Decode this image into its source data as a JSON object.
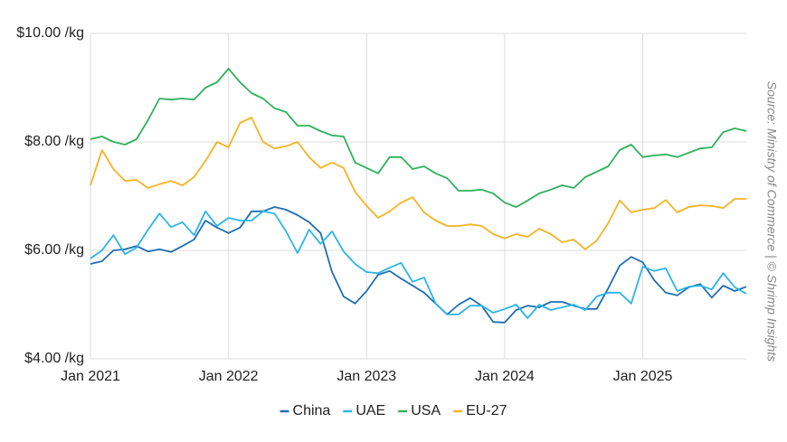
{
  "chart_data": {
    "type": "line",
    "source": "Source: Ministry of Commerce | © Shrimp Insights",
    "x": [
      "2021-01",
      "2021-02",
      "2021-03",
      "2021-04",
      "2021-05",
      "2021-06",
      "2021-07",
      "2021-08",
      "2021-09",
      "2021-10",
      "2021-11",
      "2021-12",
      "2022-01",
      "2022-02",
      "2022-03",
      "2022-04",
      "2022-05",
      "2022-06",
      "2022-07",
      "2022-08",
      "2022-09",
      "2022-10",
      "2022-11",
      "2022-12",
      "2023-01",
      "2023-02",
      "2023-03",
      "2023-04",
      "2023-05",
      "2023-06",
      "2023-07",
      "2023-08",
      "2023-09",
      "2023-10",
      "2023-11",
      "2023-12",
      "2024-01",
      "2024-02",
      "2024-03",
      "2024-04",
      "2024-05",
      "2024-06",
      "2024-07",
      "2024-08",
      "2024-09",
      "2024-10",
      "2024-11",
      "2024-12",
      "2025-01",
      "2025-02",
      "2025-03",
      "2025-04",
      "2025-05",
      "2025-06",
      "2025-07",
      "2025-08",
      "2025-09",
      "2025-10"
    ],
    "xlim": [
      "2021-01",
      "2025-10"
    ],
    "xticks": [
      {
        "value": "2021-01",
        "label": "Jan 2021"
      },
      {
        "value": "2022-01",
        "label": "Jan 2022"
      },
      {
        "value": "2023-01",
        "label": "Jan 2023"
      },
      {
        "value": "2024-01",
        "label": "Jan 2024"
      },
      {
        "value": "2025-01",
        "label": "Jan 2025"
      }
    ],
    "ylim": [
      4,
      10
    ],
    "yticks": [
      {
        "value": 4,
        "label": "$4.00 /kg"
      },
      {
        "value": 6,
        "label": "$6.00 /kg"
      },
      {
        "value": 8,
        "label": "$8.00 /kg"
      },
      {
        "value": 10,
        "label": "$10.00 /kg"
      }
    ],
    "grid": true,
    "legend": "bottom",
    "series": [
      {
        "name": "China",
        "color": "#1f6fb2",
        "values": [
          5.75,
          5.8,
          6.0,
          6.02,
          6.08,
          5.98,
          6.02,
          5.97,
          6.08,
          6.2,
          6.55,
          6.42,
          6.32,
          6.42,
          6.72,
          6.72,
          6.8,
          6.75,
          6.65,
          6.52,
          6.32,
          5.6,
          5.15,
          5.02,
          5.25,
          5.55,
          5.62,
          5.48,
          5.35,
          5.22,
          5.02,
          4.82,
          5.0,
          5.12,
          4.98,
          4.68,
          4.67,
          4.9,
          4.98,
          4.95,
          5.05,
          5.05,
          4.98,
          4.92,
          4.92,
          5.3,
          5.72,
          5.88,
          5.78,
          5.45,
          5.22,
          5.17,
          5.32,
          5.38,
          5.13,
          5.35,
          5.25,
          5.33
        ]
      },
      {
        "name": "UAE",
        "color": "#2bb5e8",
        "values": [
          5.85,
          6.0,
          6.28,
          5.93,
          6.05,
          6.38,
          6.68,
          6.43,
          6.52,
          6.28,
          6.72,
          6.45,
          6.6,
          6.55,
          6.55,
          6.72,
          6.68,
          6.35,
          5.95,
          6.38,
          6.12,
          6.35,
          5.98,
          5.75,
          5.6,
          5.58,
          5.68,
          5.77,
          5.42,
          5.5,
          5.02,
          4.82,
          4.82,
          4.98,
          4.98,
          4.85,
          4.92,
          5.0,
          4.75,
          5.0,
          4.9,
          4.95,
          5.0,
          4.9,
          5.15,
          5.22,
          5.22,
          5.02,
          5.7,
          5.62,
          5.67,
          5.25,
          5.33,
          5.35,
          5.28,
          5.58,
          5.32,
          5.2
        ]
      },
      {
        "name": "USA",
        "color": "#2eb25c",
        "values": [
          8.05,
          8.1,
          8.0,
          7.95,
          8.05,
          8.4,
          8.8,
          8.78,
          8.8,
          8.78,
          9.0,
          9.1,
          9.35,
          9.1,
          8.9,
          8.8,
          8.62,
          8.55,
          8.3,
          8.3,
          8.2,
          8.12,
          8.1,
          7.62,
          7.52,
          7.42,
          7.72,
          7.72,
          7.5,
          7.55,
          7.42,
          7.33,
          7.1,
          7.1,
          7.12,
          7.05,
          6.88,
          6.8,
          6.92,
          7.05,
          7.12,
          7.2,
          7.15,
          7.35,
          7.45,
          7.55,
          7.85,
          7.95,
          7.72,
          7.75,
          7.77,
          7.72,
          7.8,
          7.88,
          7.9,
          8.18,
          8.25,
          8.2
        ]
      },
      {
        "name": "EU-27",
        "color": "#f5b325",
        "values": [
          7.2,
          7.85,
          7.5,
          7.28,
          7.3,
          7.15,
          7.22,
          7.28,
          7.2,
          7.35,
          7.65,
          8.0,
          7.9,
          8.35,
          8.45,
          8.0,
          7.88,
          7.92,
          8.0,
          7.72,
          7.52,
          7.62,
          7.52,
          7.08,
          6.82,
          6.6,
          6.72,
          6.88,
          6.98,
          6.7,
          6.55,
          6.45,
          6.45,
          6.48,
          6.45,
          6.3,
          6.22,
          6.3,
          6.25,
          6.4,
          6.3,
          6.15,
          6.2,
          6.02,
          6.18,
          6.5,
          6.92,
          6.7,
          6.75,
          6.78,
          6.93,
          6.7,
          6.8,
          6.83,
          6.82,
          6.78,
          6.95,
          6.95
        ]
      }
    ]
  }
}
